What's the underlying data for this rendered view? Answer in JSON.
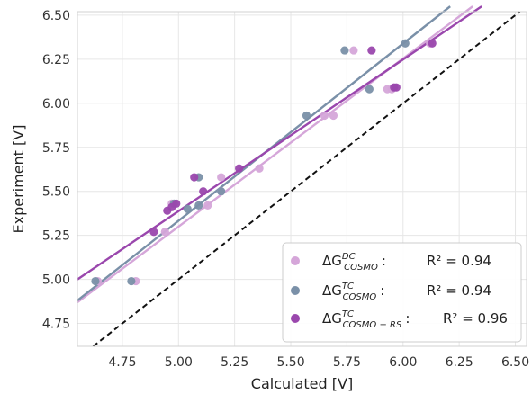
{
  "chart_data": {
    "type": "scatter",
    "xlabel": "Calculated [V]",
    "ylabel": "Experiment [V]",
    "xlim": [
      4.55,
      6.55
    ],
    "ylim": [
      4.62,
      6.52
    ],
    "xticks": [
      "4.75",
      "5.00",
      "5.25",
      "5.50",
      "5.75",
      "6.00",
      "6.25",
      "6.50"
    ],
    "yticks": [
      "4.75",
      "5.00",
      "5.25",
      "5.50",
      "5.75",
      "6.00",
      "6.25",
      "6.50"
    ],
    "grid": true,
    "legend_position": "bottom-right",
    "identity_line": {
      "style": "dashed",
      "color": "#111111"
    },
    "series": [
      {
        "legend_main": "ΔG",
        "legend_sup": "DC",
        "legend_sub": "COSMO",
        "legend_sep": ":",
        "legend_r2": "R² = 0.94",
        "color": "#d5a6d9",
        "points": [
          [
            4.64,
            4.99
          ],
          [
            4.81,
            4.99
          ],
          [
            4.94,
            5.27
          ],
          [
            4.97,
            5.43
          ],
          [
            5.13,
            5.42
          ],
          [
            5.19,
            5.5
          ],
          [
            5.19,
            5.58
          ],
          [
            5.36,
            5.63
          ],
          [
            5.65,
            5.93
          ],
          [
            5.69,
            5.93
          ],
          [
            5.78,
            6.3
          ],
          [
            5.93,
            6.08
          ],
          [
            5.95,
            6.08
          ],
          [
            6.12,
            6.34
          ]
        ],
        "fit": [
          [
            4.55,
            4.87
          ],
          [
            6.31,
            6.55
          ]
        ]
      },
      {
        "legend_main": "ΔG",
        "legend_sup": "TC",
        "legend_sub": "COSMO",
        "legend_sep": ":",
        "legend_r2": "R² = 0.94",
        "color": "#7a90a8",
        "points": [
          [
            4.63,
            4.99
          ],
          [
            4.79,
            4.99
          ],
          [
            4.98,
            5.43
          ],
          [
            5.04,
            5.4
          ],
          [
            5.09,
            5.42
          ],
          [
            5.09,
            5.58
          ],
          [
            5.19,
            5.5
          ],
          [
            5.57,
            5.93
          ],
          [
            5.74,
            6.3
          ],
          [
            5.85,
            6.08
          ],
          [
            6.01,
            6.34
          ]
        ],
        "fit": [
          [
            4.55,
            4.88
          ],
          [
            6.21,
            6.55
          ]
        ]
      },
      {
        "legend_main": "ΔG",
        "legend_sup": "TC",
        "legend_sub": "COSMO − RS",
        "legend_sep": ":",
        "legend_r2": "R² = 0.96",
        "color": "#9a47ad",
        "points": [
          [
            4.89,
            5.27
          ],
          [
            4.95,
            5.39
          ],
          [
            4.97,
            5.41
          ],
          [
            4.99,
            5.43
          ],
          [
            5.07,
            5.58
          ],
          [
            5.11,
            5.5
          ],
          [
            5.27,
            5.63
          ],
          [
            5.86,
            6.3
          ],
          [
            5.96,
            6.09
          ],
          [
            5.97,
            6.09
          ],
          [
            6.13,
            6.34
          ]
        ],
        "fit": [
          [
            4.55,
            5.0
          ],
          [
            6.35,
            6.55
          ]
        ]
      }
    ]
  }
}
